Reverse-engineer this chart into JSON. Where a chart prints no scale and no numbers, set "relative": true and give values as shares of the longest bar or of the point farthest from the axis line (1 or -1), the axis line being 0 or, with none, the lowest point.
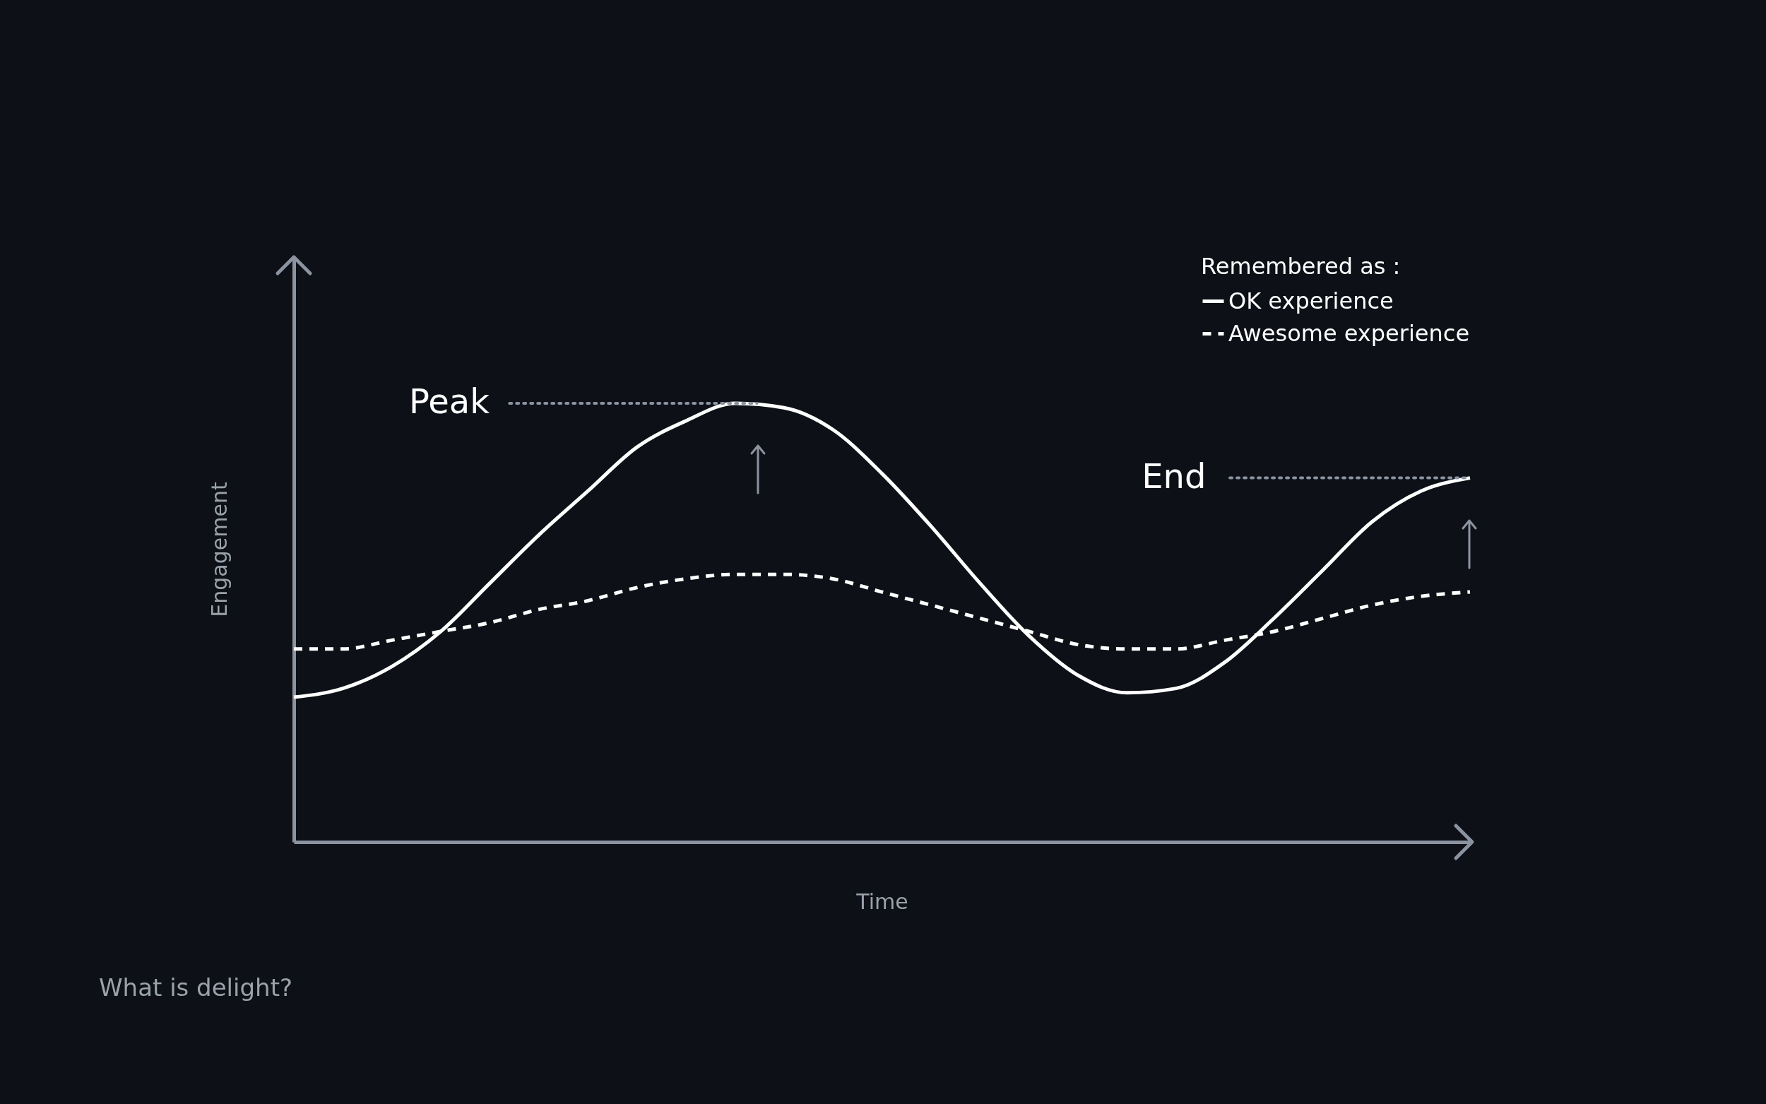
{
  "chart_data": {
    "type": "line",
    "title": "What is delight?",
    "xlabel": "Time",
    "ylabel": "Engagement",
    "legend_title": "Remembered as :",
    "legend": "top right",
    "relative": true,
    "categories": [
      null,
      null,
      null,
      null,
      null,
      null,
      null,
      null,
      null,
      null,
      null,
      null,
      null,
      null,
      null,
      null,
      null,
      null,
      null,
      null,
      null,
      null,
      null,
      null,
      null
    ],
    "series": [
      {
        "name": "OK experience",
        "color": "#ffffff",
        "line_style": "solid",
        "values": [
          0.33,
          0.35,
          0.4,
          0.48,
          0.59,
          0.7,
          0.8,
          0.9,
          0.96,
          1,
          0.99,
          0.94,
          0.84,
          0.72,
          0.59,
          0.47,
          0.38,
          0.34,
          0.35,
          0.41,
          0.51,
          0.62,
          0.73,
          0.8,
          0.83
        ]
      },
      {
        "name": "Awesome experience",
        "color": "#ffffff",
        "line_style": "dashed",
        "values": [
          0.44,
          0.44,
          0.46,
          0.48,
          0.5,
          0.53,
          0.55,
          0.58,
          0.6,
          0.61,
          0.61,
          0.6,
          0.57,
          0.54,
          0.51,
          0.48,
          0.45,
          0.44,
          0.44,
          0.46,
          0.48,
          0.51,
          0.54,
          0.56,
          0.57
        ]
      }
    ],
    "annotations": [
      "Peak",
      "End"
    ]
  }
}
